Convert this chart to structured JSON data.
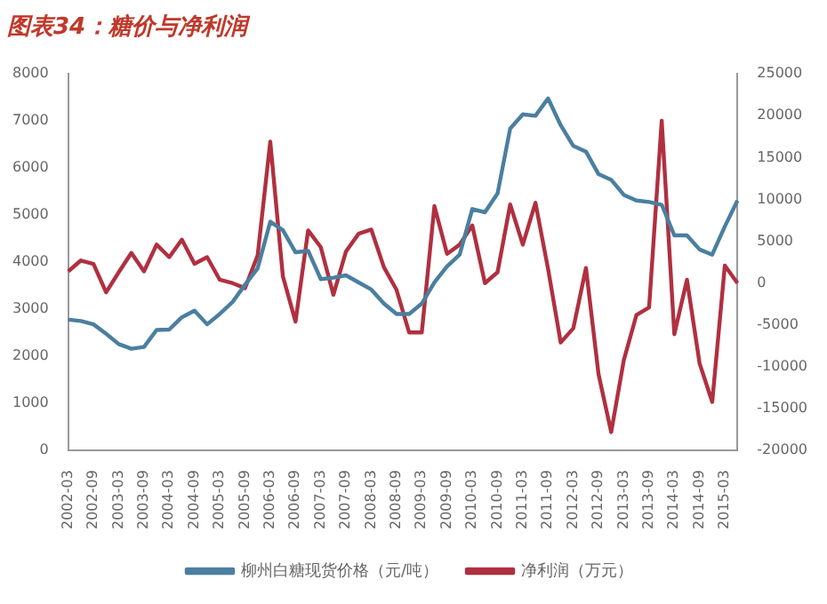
{
  "chart_data": {
    "type": "line",
    "title": "图表34：糖价与净利润",
    "categories": [
      "2002-03",
      null,
      "2002-09",
      null,
      "2003-03",
      null,
      "2003-09",
      null,
      "2004-03",
      null,
      "2004-09",
      null,
      "2005-03",
      null,
      "2005-09",
      null,
      "2006-03",
      null,
      "2006-09",
      null,
      "2007-03",
      null,
      "2007-09",
      null,
      "2008-03",
      null,
      "2008-09",
      null,
      "2009-03",
      null,
      "2009-09",
      null,
      "2010-03",
      null,
      "2010-09",
      null,
      "2011-03",
      null,
      "2011-09",
      null,
      "2012-03",
      null,
      "2012-09",
      null,
      "2013-03",
      null,
      "2013-09",
      null,
      "2014-03",
      null,
      "2014-09",
      null,
      "2015-03",
      null
    ],
    "series": [
      {
        "name": "柳州白糖现货价格（元/吨）",
        "color": "#4a7fa0",
        "values": [
          2780,
          2750,
          2680,
          2480,
          2260,
          2160,
          2200,
          2560,
          2570,
          2830,
          2970,
          2680,
          2900,
          3150,
          3520,
          3870,
          4860,
          4680,
          4210,
          4240,
          3640,
          3670,
          3720,
          3570,
          3420,
          3120,
          2900,
          2900,
          3120,
          3570,
          3910,
          4160,
          5130,
          5060,
          5460,
          6840,
          7140,
          7110,
          7480,
          6910,
          6470,
          6350,
          5870,
          5750,
          5430,
          5310,
          5280,
          5220,
          4570,
          4570,
          4270,
          4160,
          4760,
          5310
        ]
      },
      {
        "name": "净利润（万元）",
        "color": "#b03040",
        "axis": "y2",
        "values": [
          1400,
          2700,
          2300,
          -1100,
          1300,
          3600,
          1400,
          4600,
          3100,
          5200,
          2300,
          3100,
          400,
          0,
          -600,
          3300,
          16900,
          800,
          -4600,
          6300,
          4300,
          -1400,
          3800,
          5900,
          6400,
          1900,
          -800,
          -5900,
          -5900,
          9200,
          3500,
          4600,
          6900,
          0,
          1300,
          9400,
          4600,
          9600,
          1700,
          -7100,
          -5400,
          1800,
          -10900,
          -17800,
          -9200,
          -3800,
          -2900,
          19400,
          -6100,
          400,
          -9600,
          -14200,
          2100,
          0
        ]
      }
    ],
    "ylim": [
      0,
      8000
    ],
    "yticks": [
      0,
      1000,
      2000,
      3000,
      4000,
      5000,
      6000,
      7000,
      8000
    ],
    "y2lim": [
      -20000,
      25000
    ],
    "y2ticks": [
      -20000,
      -15000,
      -10000,
      -5000,
      0,
      5000,
      10000,
      15000,
      20000,
      25000
    ],
    "legend": "bottom",
    "grid": false,
    "marker": "none",
    "line_style": "solid"
  }
}
